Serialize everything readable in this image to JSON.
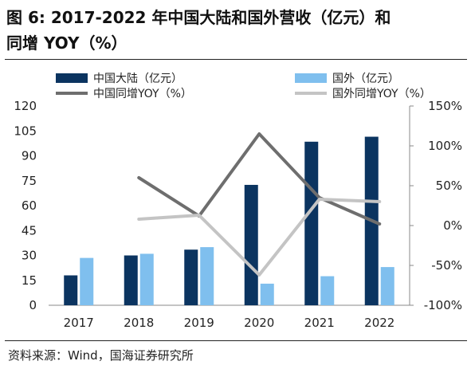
{
  "figure": {
    "title_line1": "图 6:  2017-2022 年中国大陆和国外营收（亿元）和",
    "title_line2": "同增 YOY（%）",
    "source": "资料来源：Wind，国海证券研究所"
  },
  "colors": {
    "china_bar": "#0b3460",
    "foreign_bar": "#7fbfee",
    "china_yoy": "#6e6e6e",
    "foreign_yoy": "#c4c4c4"
  },
  "chart_data": {
    "type": "bar",
    "categories": [
      "2017",
      "2018",
      "2019",
      "2020",
      "2021",
      "2022"
    ],
    "series": [
      {
        "name": "中国大陆（亿元）",
        "type": "bar",
        "axis": "left",
        "values": [
          18,
          30,
          33.5,
          72.5,
          98.5,
          101.5
        ]
      },
      {
        "name": "国外（亿元）",
        "type": "bar",
        "axis": "left",
        "values": [
          28.5,
          31,
          35,
          13,
          17.5,
          23
        ]
      },
      {
        "name": "中国同增YOY（%）",
        "type": "line",
        "axis": "right",
        "values": [
          null,
          60,
          12,
          115,
          35,
          2
        ]
      },
      {
        "name": "国外同增YOY（%）",
        "type": "line",
        "axis": "right",
        "values": [
          null,
          8,
          13,
          -62,
          33,
          30
        ]
      }
    ],
    "y_left": {
      "min": 0,
      "max": 120,
      "ticks": [
        "0",
        "15",
        "30",
        "45",
        "60",
        "75",
        "90",
        "105",
        "120"
      ]
    },
    "y_right": {
      "min": -100,
      "max": 150,
      "ticks": [
        "-100%",
        "-50%",
        "0%",
        "50%",
        "100%",
        "150%"
      ]
    },
    "legend_position": "top",
    "grid": false
  }
}
